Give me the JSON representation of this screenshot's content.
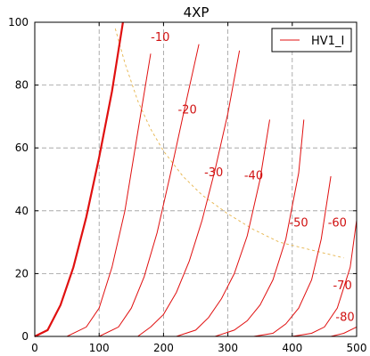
{
  "chart_data": {
    "type": "line",
    "title": "4XP",
    "xlabel": "",
    "ylabel": "",
    "xlim": [
      0,
      500
    ],
    "ylim": [
      0,
      100
    ],
    "x_ticks": [
      0,
      100,
      200,
      300,
      400,
      500
    ],
    "y_ticks": [
      0,
      20,
      40,
      60,
      80,
      100
    ],
    "grid": true,
    "legend": {
      "placement": "top-right",
      "entries": [
        {
          "label": "HV1_I",
          "color": "#e01010"
        }
      ]
    },
    "series": [
      {
        "name": "HV1_I",
        "grid_voltage_label": "0",
        "emphasis": true,
        "x": [
          0,
          20,
          40,
          60,
          80,
          100,
          120,
          137
        ],
        "y": [
          0,
          2,
          10,
          22,
          38,
          57,
          78,
          100
        ]
      },
      {
        "grid_voltage_label": "-10",
        "x": [
          0,
          20,
          50,
          80,
          100,
          120,
          140,
          160,
          180
        ],
        "y": [
          0,
          0,
          0,
          3,
          9,
          22,
          40,
          65,
          90
        ]
      },
      {
        "grid_voltage_label": "-20",
        "x": [
          0,
          70,
          100,
          130,
          150,
          170,
          190,
          210,
          230,
          255
        ],
        "y": [
          0,
          0,
          0,
          3,
          9,
          19,
          33,
          51,
          70,
          93
        ]
      },
      {
        "grid_voltage_label": "-30",
        "x": [
          0,
          120,
          160,
          180,
          200,
          220,
          240,
          260,
          280,
          300,
          318
        ],
        "y": [
          0,
          0,
          0,
          3,
          7,
          14,
          24,
          37,
          53,
          71,
          91
        ]
      },
      {
        "grid_voltage_label": "-40",
        "x": [
          0,
          170,
          220,
          250,
          270,
          290,
          310,
          330,
          350,
          365
        ],
        "y": [
          0,
          0,
          0,
          2,
          6,
          12,
          20,
          32,
          50,
          69
        ]
      },
      {
        "grid_voltage_label": "-50",
        "x": [
          0,
          220,
          280,
          310,
          330,
          350,
          370,
          390,
          410,
          418
        ],
        "y": [
          0,
          0,
          0,
          2,
          5,
          10,
          18,
          31,
          52,
          69
        ]
      },
      {
        "grid_voltage_label": "-60",
        "x": [
          0,
          270,
          340,
          370,
          390,
          410,
          430,
          445,
          460
        ],
        "y": [
          0,
          0,
          0,
          1,
          4,
          9,
          18,
          31,
          51
        ]
      },
      {
        "grid_voltage_label": "-70",
        "x": [
          0,
          320,
          400,
          430,
          450,
          470,
          490,
          500
        ],
        "y": [
          0,
          0,
          0,
          1,
          3,
          9,
          22,
          37
        ]
      },
      {
        "grid_voltage_label": "-80",
        "x": [
          0,
          400,
          460,
          480,
          500
        ],
        "y": [
          0,
          0,
          0,
          1,
          3
        ]
      }
    ],
    "plate_dissipation_limit": {
      "x": [
        125,
        140,
        160,
        180,
        200,
        230,
        260,
        300,
        340,
        380,
        420,
        460,
        480
      ],
      "y": [
        98,
        87,
        75,
        66,
        59,
        51,
        45,
        39,
        34,
        30,
        28,
        26,
        25
      ]
    },
    "annotations": [
      {
        "text": "-10",
        "x": 195,
        "y": 94
      },
      {
        "text": "-20",
        "x": 237,
        "y": 71
      },
      {
        "text": "-30",
        "x": 278,
        "y": 51
      },
      {
        "text": "-40",
        "x": 340,
        "y": 50
      },
      {
        "text": "-50",
        "x": 410,
        "y": 35
      },
      {
        "text": "-60",
        "x": 470,
        "y": 35
      },
      {
        "text": "-70",
        "x": 478,
        "y": 15
      },
      {
        "text": "-80",
        "x": 482,
        "y": 5
      }
    ]
  }
}
